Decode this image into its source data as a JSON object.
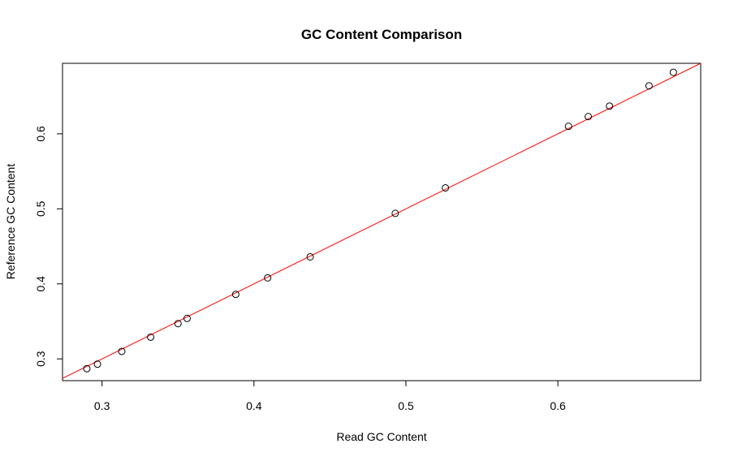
{
  "chart_data": {
    "type": "scatter",
    "title": "GC Content Comparison",
    "xlabel": "Read GC Content",
    "ylabel": "Reference GC Content",
    "xlim": [
      0.274,
      0.694
    ],
    "ylim": [
      0.271,
      0.694
    ],
    "xticks": [
      0.3,
      0.4,
      0.5,
      0.6
    ],
    "xtick_labels": [
      "0.3",
      "0.4",
      "0.5",
      "0.6"
    ],
    "yticks": [
      0.3,
      0.4,
      0.5,
      0.6
    ],
    "ytick_labels": [
      "0.3",
      "0.4",
      "0.5",
      "0.6"
    ],
    "grid": false,
    "legend": "none",
    "points": [
      {
        "x": 0.29,
        "y": 0.287
      },
      {
        "x": 0.297,
        "y": 0.293
      },
      {
        "x": 0.313,
        "y": 0.31
      },
      {
        "x": 0.332,
        "y": 0.329
      },
      {
        "x": 0.35,
        "y": 0.347
      },
      {
        "x": 0.356,
        "y": 0.354
      },
      {
        "x": 0.388,
        "y": 0.386
      },
      {
        "x": 0.409,
        "y": 0.408
      },
      {
        "x": 0.437,
        "y": 0.436
      },
      {
        "x": 0.493,
        "y": 0.494
      },
      {
        "x": 0.526,
        "y": 0.528
      },
      {
        "x": 0.607,
        "y": 0.61
      },
      {
        "x": 0.62,
        "y": 0.623
      },
      {
        "x": 0.634,
        "y": 0.637
      },
      {
        "x": 0.66,
        "y": 0.664
      },
      {
        "x": 0.676,
        "y": 0.682
      }
    ],
    "reference_line": {
      "type": "identity",
      "color": "#ff0000"
    },
    "point_style": {
      "shape": "open-circle",
      "color": "#000000"
    }
  }
}
